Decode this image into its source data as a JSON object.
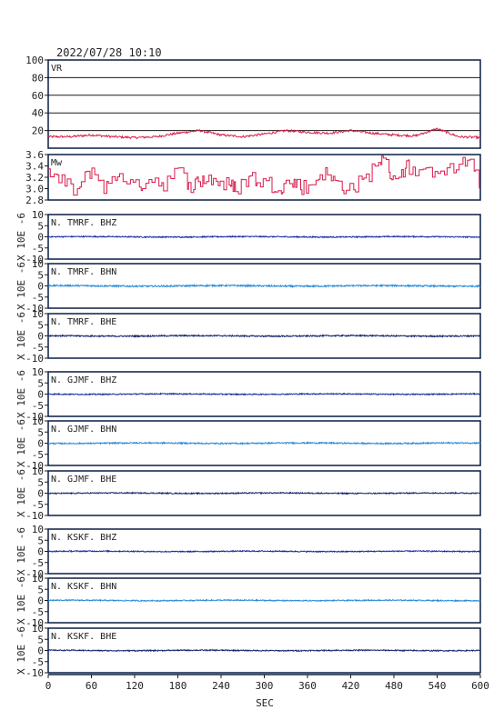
{
  "title": "2022/07/28  10:10",
  "chart_data": {
    "type": "line",
    "title": "2022/07/28  10:10",
    "xlabel": "SEC",
    "xlim": [
      0,
      600
    ],
    "x_ticks": [
      0,
      60,
      120,
      180,
      240,
      300,
      360,
      420,
      480,
      540,
      600
    ],
    "x_tick_labels": [
      "0",
      "60",
      "120",
      "180",
      "240",
      "300",
      "360",
      "420",
      "480",
      "540",
      "600"
    ],
    "colors": {
      "vr": "#d81b4a",
      "mw": "#d81b4a",
      "frame": "#0a1f44",
      "bhz": "#1a2aa0",
      "bhn": "#2a8ad8",
      "bhe": "#16246e",
      "grid": "#1a1a1a"
    },
    "vr": {
      "label": "VR",
      "ylim": [
        0,
        100
      ],
      "y_ticks": [
        20,
        40,
        60,
        80,
        100
      ],
      "y_tick_labels": [
        "20",
        "40",
        "60",
        "80",
        "100"
      ],
      "grid": true,
      "x": [
        0,
        30,
        60,
        90,
        120,
        150,
        180,
        210,
        240,
        270,
        300,
        330,
        360,
        390,
        420,
        450,
        480,
        510,
        540,
        570,
        600
      ],
      "values": [
        13,
        13,
        15,
        13,
        12,
        13,
        17,
        20,
        15,
        13,
        16,
        20,
        18,
        17,
        20,
        17,
        15,
        14,
        22,
        13,
        12
      ]
    },
    "mw": {
      "label": "Mw",
      "ylim": [
        2.8,
        3.6
      ],
      "y_ticks": [
        2.8,
        3.0,
        3.2,
        3.4,
        3.6
      ],
      "y_tick_labels": [
        "2.8",
        "3.0",
        "3.2",
        "3.4",
        "3.6"
      ],
      "x": [
        0,
        20,
        40,
        60,
        80,
        100,
        120,
        140,
        160,
        180,
        200,
        220,
        240,
        260,
        280,
        300,
        320,
        340,
        360,
        380,
        400,
        420,
        440,
        460,
        480,
        500,
        520,
        540,
        560,
        580,
        600
      ],
      "values": [
        3.3,
        3.1,
        2.95,
        3.35,
        3.0,
        3.3,
        3.0,
        3.2,
        3.1,
        3.3,
        3.05,
        3.2,
        3.1,
        3.0,
        3.2,
        3.1,
        3.05,
        3.1,
        3.0,
        3.3,
        3.1,
        3.0,
        3.15,
        3.55,
        3.2,
        3.4,
        3.2,
        3.4,
        3.3,
        3.5,
        3.1
      ]
    },
    "waveforms": {
      "ylabel": "X 10E -6",
      "ylim": [
        -10,
        10
      ],
      "y_ticks": [
        -10,
        -5,
        0,
        5,
        10
      ],
      "y_tick_labels": [
        "-10",
        "-5",
        "0",
        "5",
        "10"
      ],
      "series": [
        {
          "name": "N. TMRF. BHZ",
          "component": "bhz",
          "amplitude": 0.25
        },
        {
          "name": "N. TMRF. BHN",
          "component": "bhn",
          "amplitude": 0.35
        },
        {
          "name": "N. TMRF. BHE",
          "component": "bhe",
          "amplitude": 0.3
        },
        {
          "name": "N. GJMF. BHZ",
          "component": "bhz",
          "amplitude": 0.25
        },
        {
          "name": "N. GJMF. BHN",
          "component": "bhn",
          "amplitude": 0.3
        },
        {
          "name": "N. GJMF. BHE",
          "component": "bhe",
          "amplitude": 0.25
        },
        {
          "name": "N. KSKF. BHZ",
          "component": "bhz",
          "amplitude": 0.25
        },
        {
          "name": "N. KSKF. BHN",
          "component": "bhn",
          "amplitude": 0.25
        },
        {
          "name": "N. KSKF. BHE",
          "component": "bhe",
          "amplitude": 0.25
        }
      ]
    }
  }
}
